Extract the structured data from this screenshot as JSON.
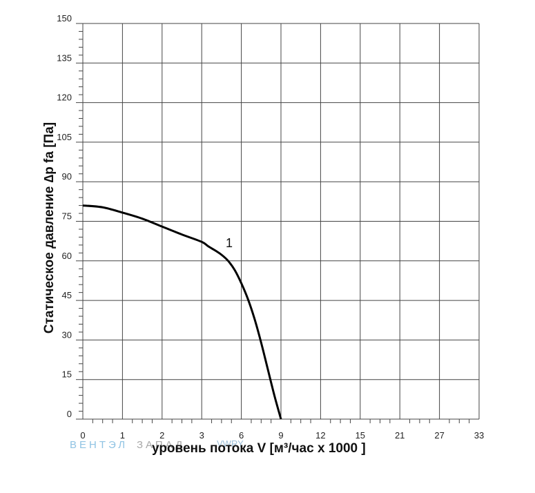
{
  "chart_data": {
    "type": "line",
    "ylabel": "Статическое давление  ∆p fa [Па]",
    "xlabel": "уровень потока  V [м³/час x 1000 ]",
    "xlim": [
      0,
      33
    ],
    "ylim": [
      0,
      150
    ],
    "x_ticks": [
      "0",
      "1",
      "2",
      "3",
      "6",
      "9",
      "12",
      "15",
      "21",
      "27",
      "33"
    ],
    "y_ticks": [
      "0",
      "15",
      "30",
      "45",
      "60",
      "75",
      "90",
      "105",
      "120",
      "135",
      "150"
    ],
    "grid": true,
    "series": [
      {
        "name": "1",
        "color": "#000000",
        "points": [
          [
            0,
            81
          ],
          [
            0.5,
            80.3
          ],
          [
            1,
            78.3
          ],
          [
            1.5,
            76
          ],
          [
            2,
            73
          ],
          [
            2.5,
            70
          ],
          [
            3,
            67.2
          ],
          [
            3.5,
            65.5
          ],
          [
            4,
            64
          ],
          [
            4.5,
            62.3
          ],
          [
            5,
            60
          ],
          [
            5.5,
            56.5
          ],
          [
            6,
            51.5
          ],
          [
            6.5,
            45.5
          ],
          [
            7,
            38
          ],
          [
            7.5,
            29
          ],
          [
            8,
            19
          ],
          [
            8.5,
            9
          ],
          [
            9,
            0
          ]
        ]
      }
    ]
  },
  "watermark": {
    "part1": "ВЕНТЭЛ",
    "part2": "ЗАПАД",
    "part3": "VWRY"
  }
}
